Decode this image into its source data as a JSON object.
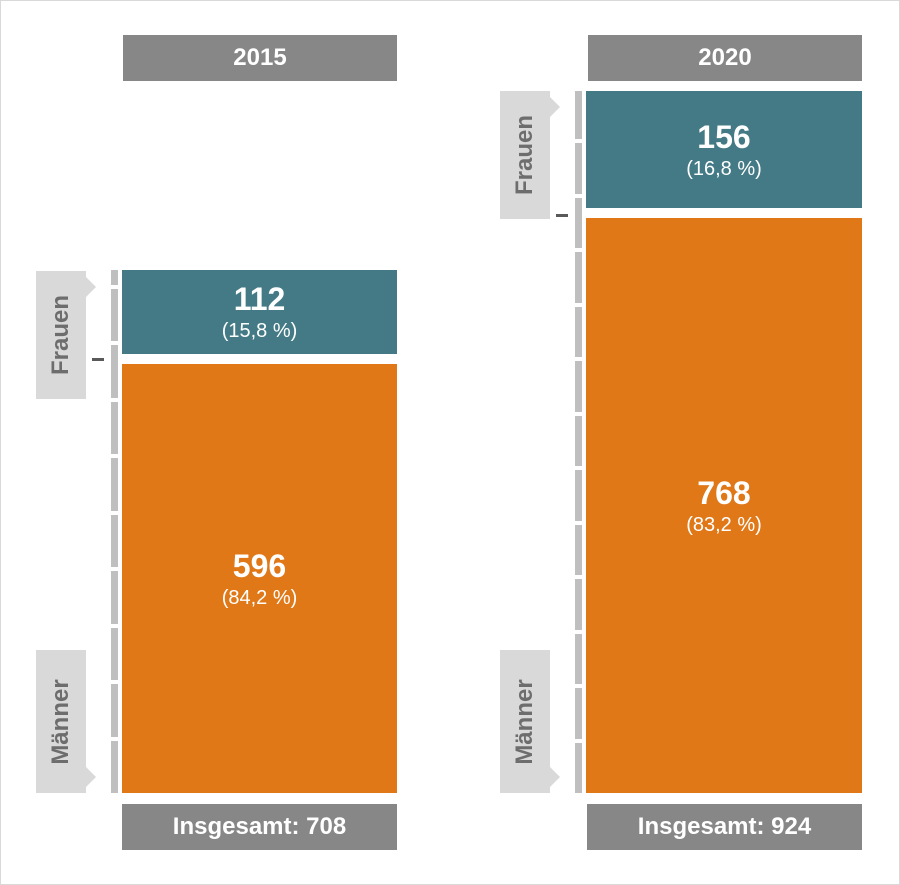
{
  "chart_data": {
    "type": "bar",
    "stacked": true,
    "categories": [
      "2015",
      "2020"
    ],
    "series": [
      {
        "name": "Männer",
        "values": [
          596,
          768
        ],
        "percent": [
          "84,2 %",
          "83,2 %"
        ],
        "color": "#e07818"
      },
      {
        "name": "Frauen",
        "values": [
          112,
          156
        ],
        "percent": [
          "15,8 %",
          "16,8 %"
        ],
        "color": "#437a85"
      }
    ],
    "totals": [
      708,
      924
    ],
    "title": "",
    "xlabel": "",
    "ylabel": "",
    "legend_position": "left-of-bars"
  },
  "columns": [
    {
      "year": "2015",
      "frauen": {
        "label": "Frauen",
        "value": "112",
        "percent": "(15,8 %)"
      },
      "maenner": {
        "label": "Männer",
        "value": "596",
        "percent": "(84,2 %)"
      },
      "total": "Insgesamt: 708"
    },
    {
      "year": "2020",
      "frauen": {
        "label": "Frauen",
        "value": "156",
        "percent": "(16,8 %)"
      },
      "maenner": {
        "label": "Männer",
        "value": "768",
        "percent": "(83,2 %)"
      },
      "total": "Insgesamt: 924"
    }
  ],
  "colors": {
    "header_bg": "#878787",
    "frauen": "#437a85",
    "maenner": "#e07818",
    "label_bg": "#d9d9d9",
    "scale": "#bfbfbf"
  }
}
